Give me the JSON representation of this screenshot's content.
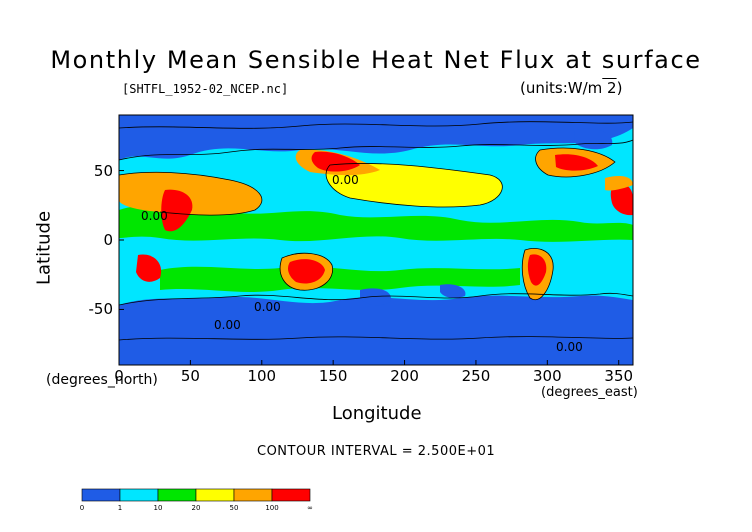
{
  "figure": {
    "title": "Monthly Mean Sensible Heat Net Flux at surface",
    "source_file": "[SHTFL_1952-02_NCEP.nc]",
    "units": "(units:W/m^2)",
    "y_axis_label": "Latitude",
    "y_axis_unit": "(degrees_north)",
    "x_axis_label": "Longitude",
    "x_axis_unit": "(degrees_east)",
    "contour_interval": "CONTOUR INTERVAL = 2.500E+01"
  },
  "contour_labels": [
    "0.00",
    "0.00",
    "0.00",
    "0.00",
    "0.00"
  ],
  "chart_data": {
    "type": "heatmap",
    "projection": "lon-lat",
    "xlim": [
      0,
      360
    ],
    "ylim": [
      -90,
      90
    ],
    "x_ticks": [
      0,
      50,
      100,
      150,
      200,
      250,
      300,
      350
    ],
    "y_ticks": [
      50,
      0,
      -50
    ],
    "grid": false,
    "legend_placement": "bottom-left",
    "colorbar": {
      "labels": [
        "0",
        "1",
        "10",
        "20",
        "50",
        "100",
        "∞"
      ],
      "colors": [
        "#1f5ce6",
        "#00e6ff",
        "#00e600",
        "#ffff00",
        "#ffa500",
        "#ff0000"
      ]
    }
  }
}
